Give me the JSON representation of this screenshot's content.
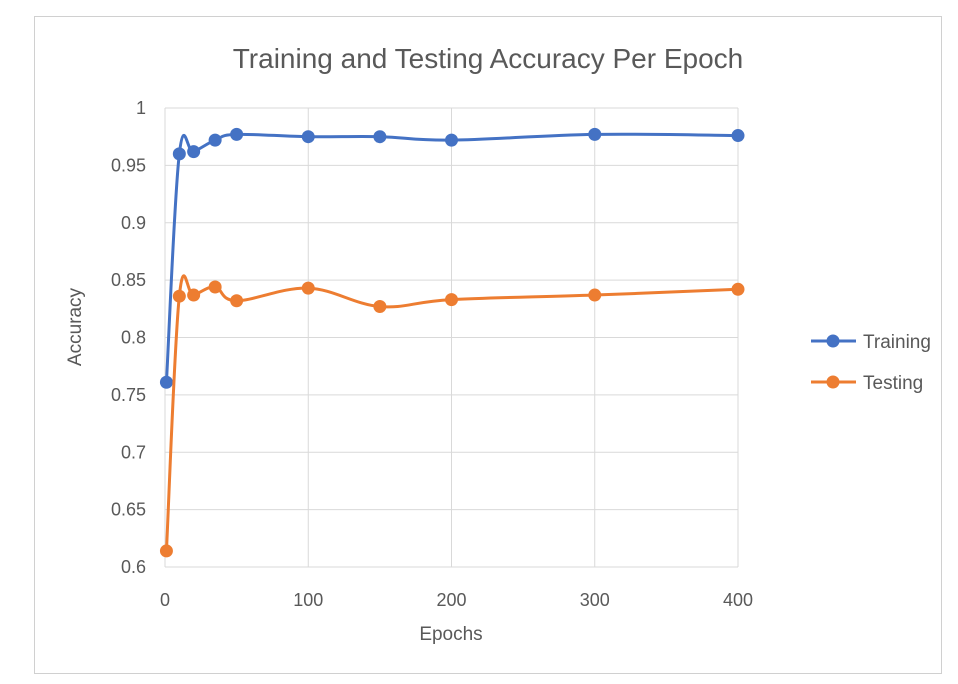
{
  "chart_data": {
    "type": "line",
    "title": "Training and Testing Accuracy Per Epoch",
    "xlabel": "Epochs",
    "ylabel": "Accuracy",
    "xlim": [
      0,
      400
    ],
    "ylim": [
      0.6,
      1
    ],
    "xticks": [
      0,
      100,
      200,
      300,
      400
    ],
    "yticks": [
      0.6,
      0.65,
      0.7,
      0.75,
      0.8,
      0.85,
      0.9,
      0.95,
      1
    ],
    "ytick_labels": [
      "0.6",
      "0.65",
      "0.7",
      "0.75",
      "0.8",
      "0.85",
      "0.9",
      "0.95",
      "1"
    ],
    "grid": true,
    "legend": "right",
    "series": [
      {
        "name": "Training",
        "color": "#4472C4",
        "x": [
          1,
          10,
          20,
          35,
          50,
          100,
          150,
          200,
          300,
          400
        ],
        "y": [
          0.761,
          0.96,
          0.962,
          0.972,
          0.977,
          0.975,
          0.975,
          0.972,
          0.977,
          0.976
        ]
      },
      {
        "name": "Testing",
        "color": "#ED7D31",
        "x": [
          1,
          10,
          20,
          35,
          50,
          100,
          150,
          200,
          300,
          400
        ],
        "y": [
          0.614,
          0.836,
          0.837,
          0.844,
          0.832,
          0.843,
          0.827,
          0.833,
          0.837,
          0.842
        ]
      }
    ]
  }
}
